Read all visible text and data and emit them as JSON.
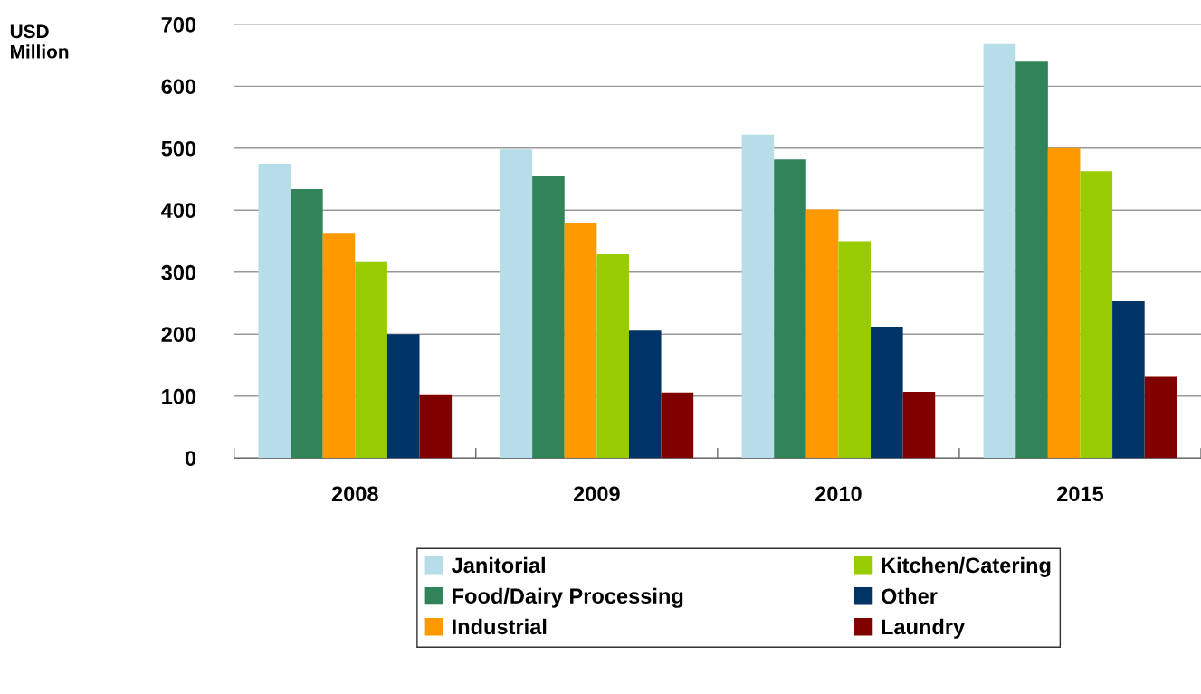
{
  "chart_data": {
    "type": "bar",
    "ylabel": "USD\nMillion",
    "categories": [
      "2008",
      "2009",
      "2010",
      "2015"
    ],
    "series": [
      {
        "name": "Janitorial",
        "color": "#b7dde8",
        "values": [
          475,
          498,
          522,
          668
        ]
      },
      {
        "name": "Food/Dairy Processing",
        "color": "#31845a",
        "values": [
          434,
          456,
          482,
          641
        ]
      },
      {
        "name": "Industrial",
        "color": "#ff9900",
        "values": [
          362,
          379,
          401,
          500
        ]
      },
      {
        "name": "Kitchen/Catering",
        "color": "#99cc00",
        "values": [
          316,
          329,
          350,
          463
        ]
      },
      {
        "name": "Other",
        "color": "#003366",
        "values": [
          200,
          206,
          212,
          253
        ]
      },
      {
        "name": "Laundry",
        "color": "#800000",
        "values": [
          103,
          106,
          107,
          131
        ]
      }
    ],
    "ylim": [
      0,
      700
    ],
    "yticks": [
      0,
      100,
      200,
      300,
      400,
      500,
      600,
      700
    ],
    "grid": "y",
    "legend": "bottom"
  }
}
